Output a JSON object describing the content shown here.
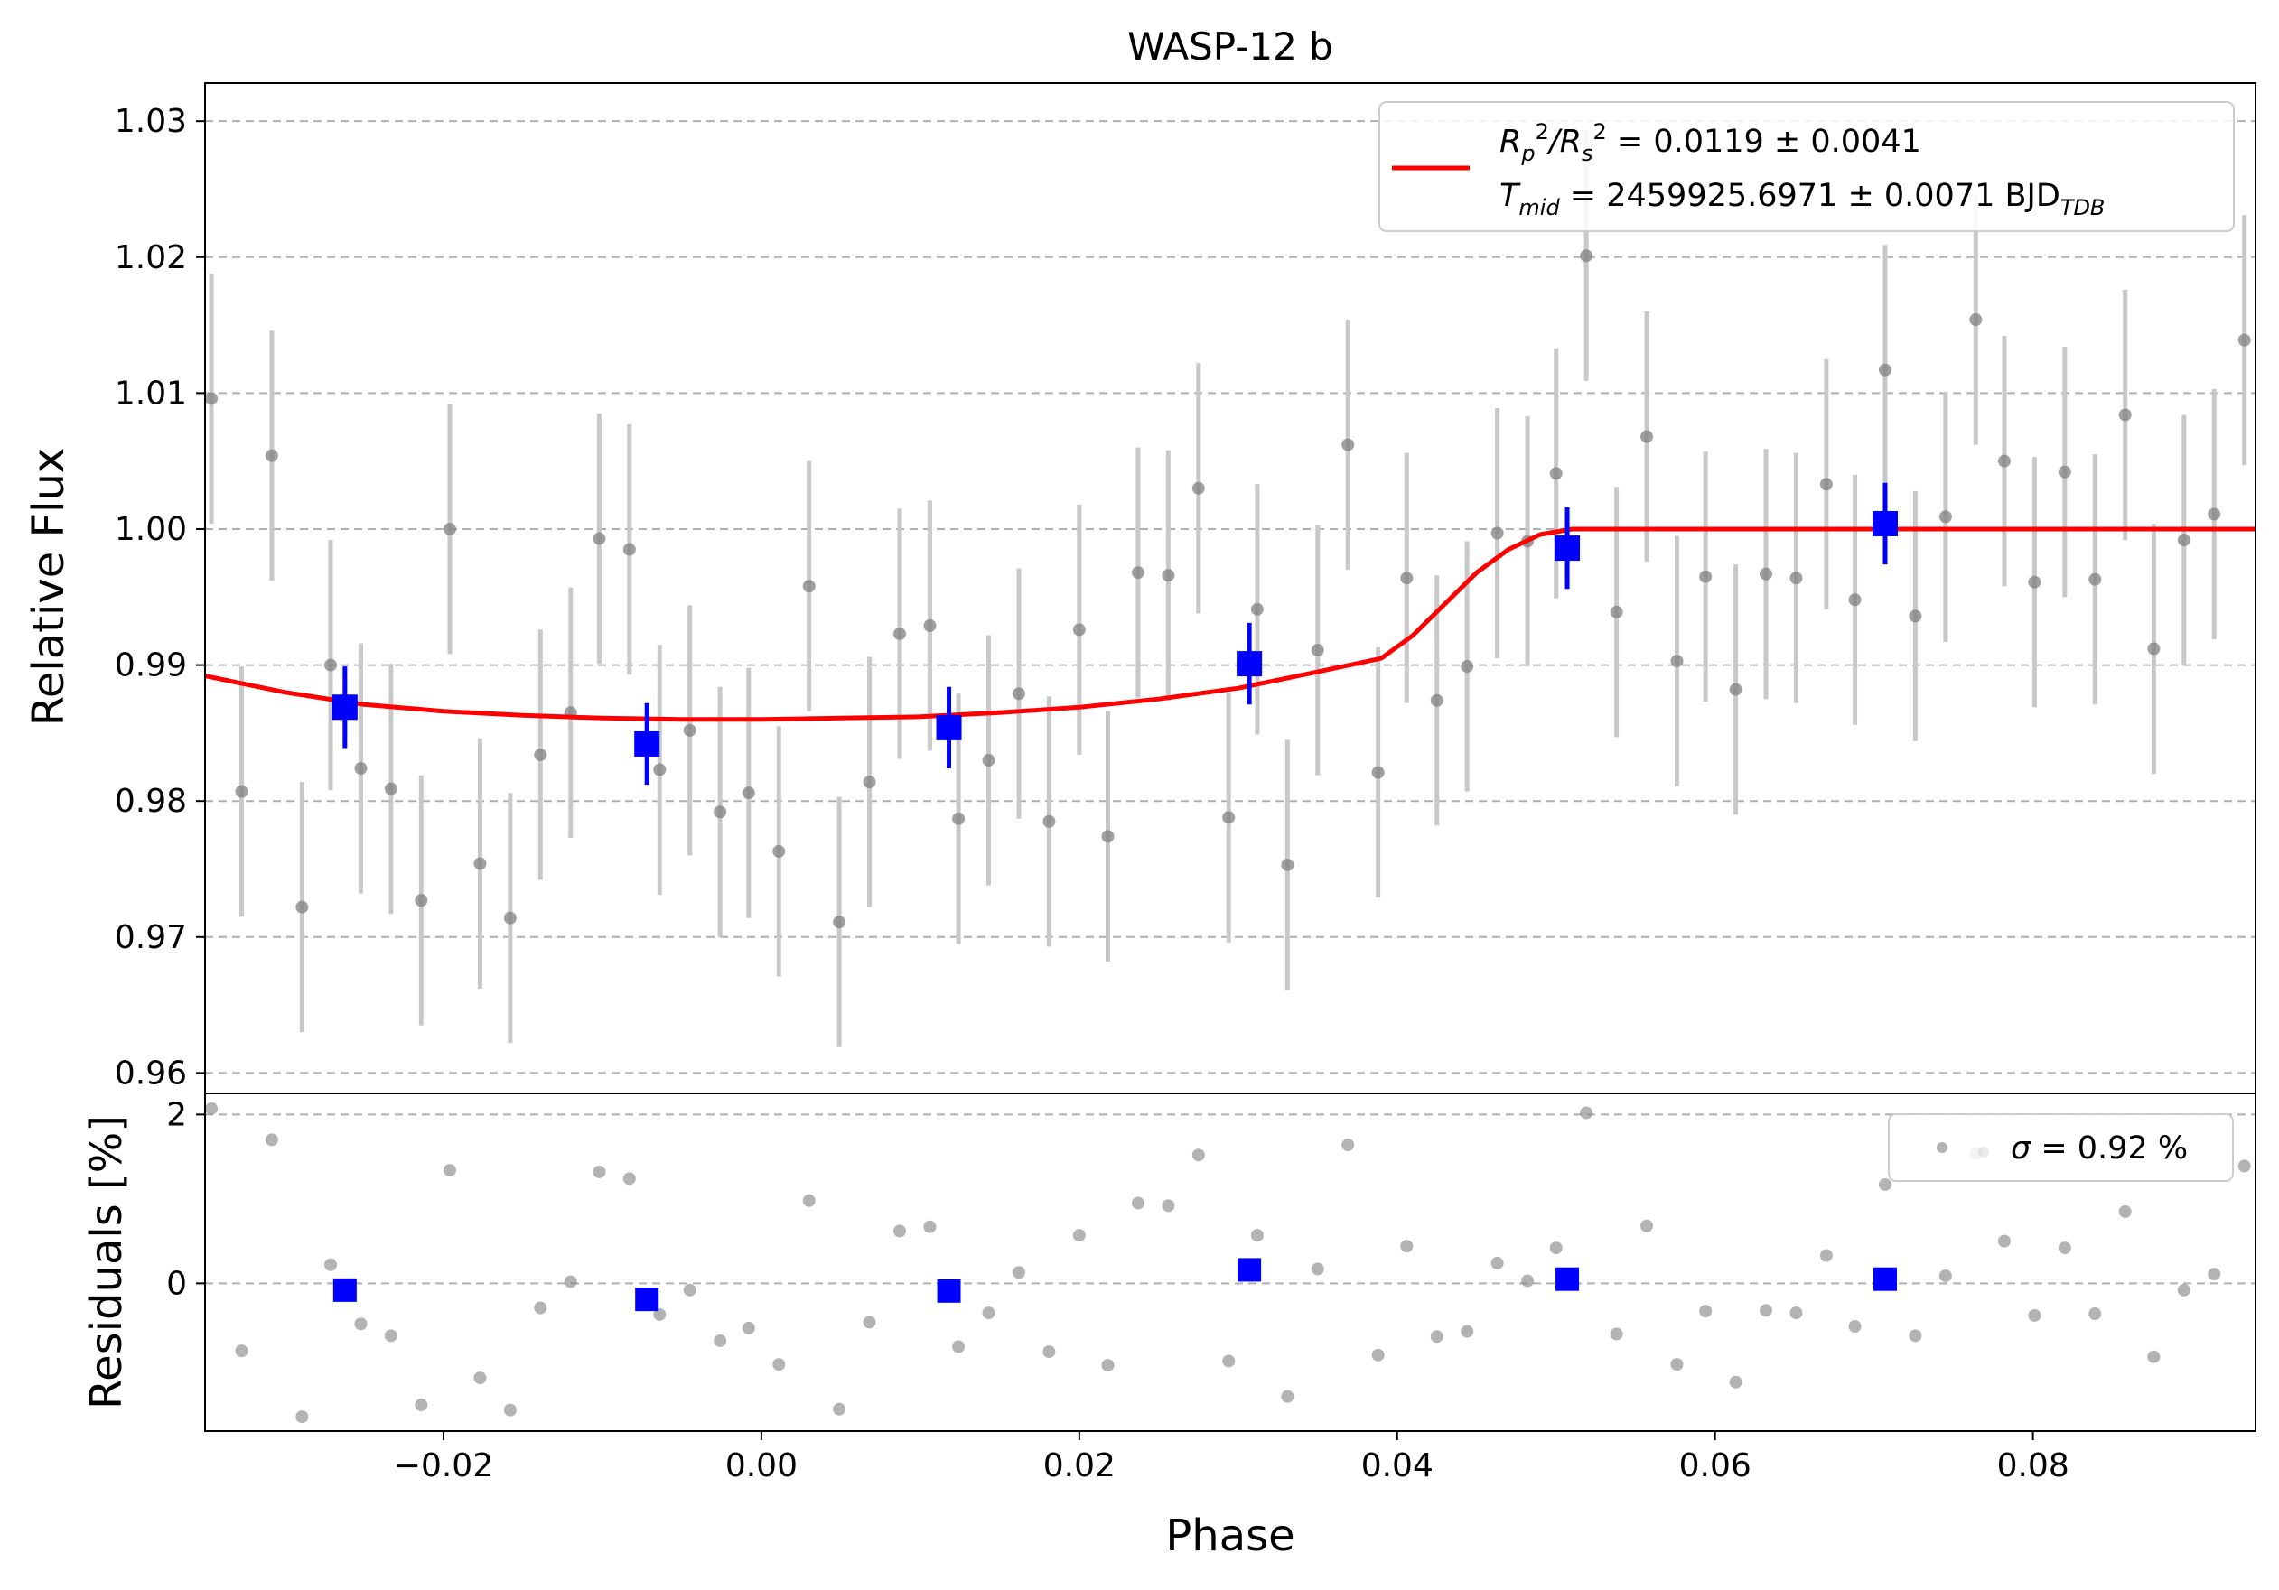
{
  "chart_data": [
    {
      "type": "scatter",
      "panel": "light-curve",
      "title": "WASP-12 b",
      "xlabel": "",
      "ylabel": "Relative Flux",
      "xlim": [
        -0.035,
        0.094
      ],
      "ylim": [
        0.9585,
        1.0328
      ],
      "yticks": [
        "0.96",
        "0.97",
        "0.98",
        "0.99",
        "1.00",
        "1.01",
        "1.02",
        "1.03"
      ],
      "yticks_values": [
        0.96,
        0.97,
        0.98,
        0.99,
        1.0,
        1.01,
        1.02,
        1.03
      ],
      "grid": "horizontal-dashed",
      "legend_position": "top-right",
      "legend": {
        "line1_lhs": "R",
        "line1_sub1": "p",
        "line1_slash": "/R",
        "line1_sub2": "s",
        "line1_sup": "2",
        "line1_value": " = 0.0119 ± 0.0041",
        "line2_lhs": "T",
        "line2_sub": "mid",
        "line2_value": " = 2459925.6971 ± 0.0071 BJD",
        "line2_unit_sub": "TDB"
      },
      "colors": {
        "data": "#808080",
        "errorbar": "#c8c8c8",
        "binned": "#0000ff",
        "model": "#ff0000",
        "grid": "#b0b0b0"
      },
      "series": [
        {
          "role": "data",
          "error": 0.0092,
          "points": [
            [
              -0.0346,
              1.0096
            ],
            [
              -0.0327,
              0.9807
            ],
            [
              -0.0308,
              1.0054
            ],
            [
              -0.0289,
              0.9722
            ],
            [
              -0.0271,
              0.99
            ],
            [
              -0.0252,
              0.9824
            ],
            [
              -0.0233,
              0.9809
            ],
            [
              -0.0214,
              0.9727
            ],
            [
              -0.0196,
              1.0
            ],
            [
              -0.0177,
              0.9754
            ],
            [
              -0.0158,
              0.9714
            ],
            [
              -0.0139,
              0.9834
            ],
            [
              -0.012,
              0.9865
            ],
            [
              -0.0102,
              0.9993
            ],
            [
              -0.0083,
              0.9985
            ],
            [
              -0.0064,
              0.9823
            ],
            [
              -0.0045,
              0.9852
            ],
            [
              -0.0026,
              0.9792
            ],
            [
              -0.0008,
              0.9806
            ],
            [
              0.0011,
              0.9763
            ],
            [
              0.003,
              0.9958
            ],
            [
              0.0049,
              0.9711
            ],
            [
              0.0068,
              0.9814
            ],
            [
              0.0087,
              0.9923
            ],
            [
              0.0106,
              0.9929
            ],
            [
              0.0124,
              0.9787
            ],
            [
              0.0143,
              0.983
            ],
            [
              0.0162,
              0.9879
            ],
            [
              0.0181,
              0.9785
            ],
            [
              0.02,
              0.9926
            ],
            [
              0.0218,
              0.9774
            ],
            [
              0.0237,
              0.9968
            ],
            [
              0.0256,
              0.9966
            ],
            [
              0.0275,
              1.003
            ],
            [
              0.0294,
              0.9788
            ],
            [
              0.0312,
              0.9941
            ],
            [
              0.0331,
              0.9753
            ],
            [
              0.035,
              0.9911
            ],
            [
              0.0369,
              1.0062
            ],
            [
              0.0388,
              0.9821
            ],
            [
              0.0406,
              0.9964
            ],
            [
              0.0425,
              0.9874
            ],
            [
              0.0444,
              0.9899
            ],
            [
              0.0463,
              0.9997
            ],
            [
              0.0482,
              0.9991
            ],
            [
              0.05,
              1.0041
            ],
            [
              0.0519,
              1.0201
            ],
            [
              0.0538,
              0.9939
            ],
            [
              0.0557,
              1.0068
            ],
            [
              0.0576,
              0.9903
            ],
            [
              0.0594,
              0.9965
            ],
            [
              0.0613,
              0.9882
            ],
            [
              0.0632,
              0.9967
            ],
            [
              0.0651,
              0.9964
            ],
            [
              0.067,
              1.0033
            ],
            [
              0.0688,
              0.9948
            ],
            [
              0.0707,
              1.0117
            ],
            [
              0.0726,
              0.9936
            ],
            [
              0.0745,
              1.0009
            ],
            [
              0.0764,
              1.0154
            ],
            [
              0.0782,
              1.005
            ],
            [
              0.0801,
              0.9961
            ],
            [
              0.082,
              1.0042
            ],
            [
              0.0839,
              0.9963
            ],
            [
              0.0858,
              1.0084
            ],
            [
              0.0876,
              0.9912
            ],
            [
              0.0895,
              0.9992
            ],
            [
              0.0914,
              1.0011
            ],
            [
              0.0933,
              1.0139
            ]
          ]
        },
        {
          "role": "binned",
          "error": 0.003,
          "points": [
            [
              -0.0262,
              0.9869
            ],
            [
              -0.0072,
              0.9842
            ],
            [
              0.0118,
              0.9854
            ],
            [
              0.0307,
              0.9901
            ],
            [
              0.0507,
              0.9986
            ],
            [
              0.0707,
              1.0004
            ]
          ]
        },
        {
          "role": "model",
          "points": [
            [
              -0.035,
              0.9892
            ],
            [
              -0.03,
              0.988
            ],
            [
              -0.025,
              0.9871
            ],
            [
              -0.02,
              0.9866
            ],
            [
              -0.015,
              0.9863
            ],
            [
              -0.01,
              0.9861
            ],
            [
              -0.005,
              0.986
            ],
            [
              0.0,
              0.986
            ],
            [
              0.005,
              0.9861
            ],
            [
              0.01,
              0.9862
            ],
            [
              0.015,
              0.9865
            ],
            [
              0.02,
              0.9869
            ],
            [
              0.025,
              0.9875
            ],
            [
              0.03,
              0.9883
            ],
            [
              0.035,
              0.9895
            ],
            [
              0.039,
              0.9905
            ],
            [
              0.041,
              0.9922
            ],
            [
              0.043,
              0.9945
            ],
            [
              0.045,
              0.9968
            ],
            [
              0.047,
              0.9985
            ],
            [
              0.049,
              0.9996
            ],
            [
              0.051,
              1.0
            ],
            [
              0.06,
              1.0
            ],
            [
              0.08,
              1.0
            ],
            [
              0.094,
              1.0
            ]
          ]
        }
      ]
    },
    {
      "type": "scatter",
      "panel": "residuals",
      "xlabel": "Phase",
      "ylabel": "Residuals [%]",
      "xlim": [
        -0.035,
        0.094
      ],
      "ylim": [
        -1.75,
        2.25
      ],
      "xticks": [
        "−0.02",
        "0.00",
        "0.02",
        "0.04",
        "0.06",
        "0.08"
      ],
      "xticks_values": [
        -0.02,
        0.0,
        0.02,
        0.04,
        0.06,
        0.08
      ],
      "yticks": [
        "0",
        "2"
      ],
      "yticks_values": [
        0,
        2
      ],
      "legend_position": "top-right",
      "legend": {
        "sigma_symbol": "σ",
        "sigma_value": " = 0.92 %"
      },
      "series": [
        {
          "role": "data",
          "points": [
            [
              -0.0346,
              2.07
            ],
            [
              -0.0327,
              -0.8
            ],
            [
              -0.0308,
              1.7
            ],
            [
              -0.0289,
              -1.58
            ],
            [
              -0.0271,
              0.22
            ],
            [
              -0.0252,
              -0.48
            ],
            [
              -0.0233,
              -0.62
            ],
            [
              -0.0214,
              -1.44
            ],
            [
              -0.0196,
              1.34
            ],
            [
              -0.0177,
              -1.12
            ],
            [
              -0.0158,
              -1.5
            ],
            [
              -0.0139,
              -0.29
            ],
            [
              -0.012,
              0.02
            ],
            [
              -0.0102,
              1.32
            ],
            [
              -0.0083,
              1.24
            ],
            [
              -0.0064,
              -0.37
            ],
            [
              -0.0045,
              -0.08
            ],
            [
              -0.0026,
              -0.68
            ],
            [
              -0.0008,
              -0.53
            ],
            [
              0.0011,
              -0.96
            ],
            [
              0.003,
              0.98
            ],
            [
              0.0049,
              -1.49
            ],
            [
              0.0068,
              -0.46
            ],
            [
              0.0087,
              0.62
            ],
            [
              0.0106,
              0.67
            ],
            [
              0.0124,
              -0.75
            ],
            [
              0.0143,
              -0.35
            ],
            [
              0.0162,
              0.13
            ],
            [
              0.0181,
              -0.81
            ],
            [
              0.02,
              0.57
            ],
            [
              0.0218,
              -0.97
            ],
            [
              0.0237,
              0.95
            ],
            [
              0.0256,
              0.92
            ],
            [
              0.0275,
              1.52
            ],
            [
              0.0294,
              -0.92
            ],
            [
              0.0312,
              0.57
            ],
            [
              0.0331,
              -1.34
            ],
            [
              0.035,
              0.17
            ],
            [
              0.0369,
              1.64
            ],
            [
              0.0388,
              -0.85
            ],
            [
              0.0406,
              0.44
            ],
            [
              0.0425,
              -0.63
            ],
            [
              0.0444,
              -0.57
            ],
            [
              0.0463,
              0.24
            ],
            [
              0.0482,
              0.03
            ],
            [
              0.05,
              0.42
            ],
            [
              0.0519,
              2.02
            ],
            [
              0.0538,
              -0.6
            ],
            [
              0.0557,
              0.68
            ],
            [
              0.0576,
              -0.96
            ],
            [
              0.0594,
              -0.33
            ],
            [
              0.0613,
              -1.17
            ],
            [
              0.0632,
              -0.32
            ],
            [
              0.0651,
              -0.35
            ],
            [
              0.067,
              0.33
            ],
            [
              0.0688,
              -0.51
            ],
            [
              0.0707,
              1.17
            ],
            [
              0.0726,
              -0.62
            ],
            [
              0.0745,
              0.09
            ],
            [
              0.0764,
              1.54
            ],
            [
              0.0782,
              0.5
            ],
            [
              0.0801,
              -0.38
            ],
            [
              0.082,
              0.42
            ],
            [
              0.0839,
              -0.36
            ],
            [
              0.0858,
              0.85
            ],
            [
              0.0876,
              -0.87
            ],
            [
              0.0895,
              -0.08
            ],
            [
              0.0914,
              0.11
            ],
            [
              0.0933,
              1.39
            ]
          ]
        },
        {
          "role": "binned",
          "points": [
            [
              -0.0262,
              -0.08
            ],
            [
              -0.0072,
              -0.19
            ],
            [
              0.0118,
              -0.09
            ],
            [
              0.0307,
              0.16
            ],
            [
              0.0507,
              0.05
            ],
            [
              0.0707,
              0.05
            ]
          ]
        }
      ]
    }
  ]
}
